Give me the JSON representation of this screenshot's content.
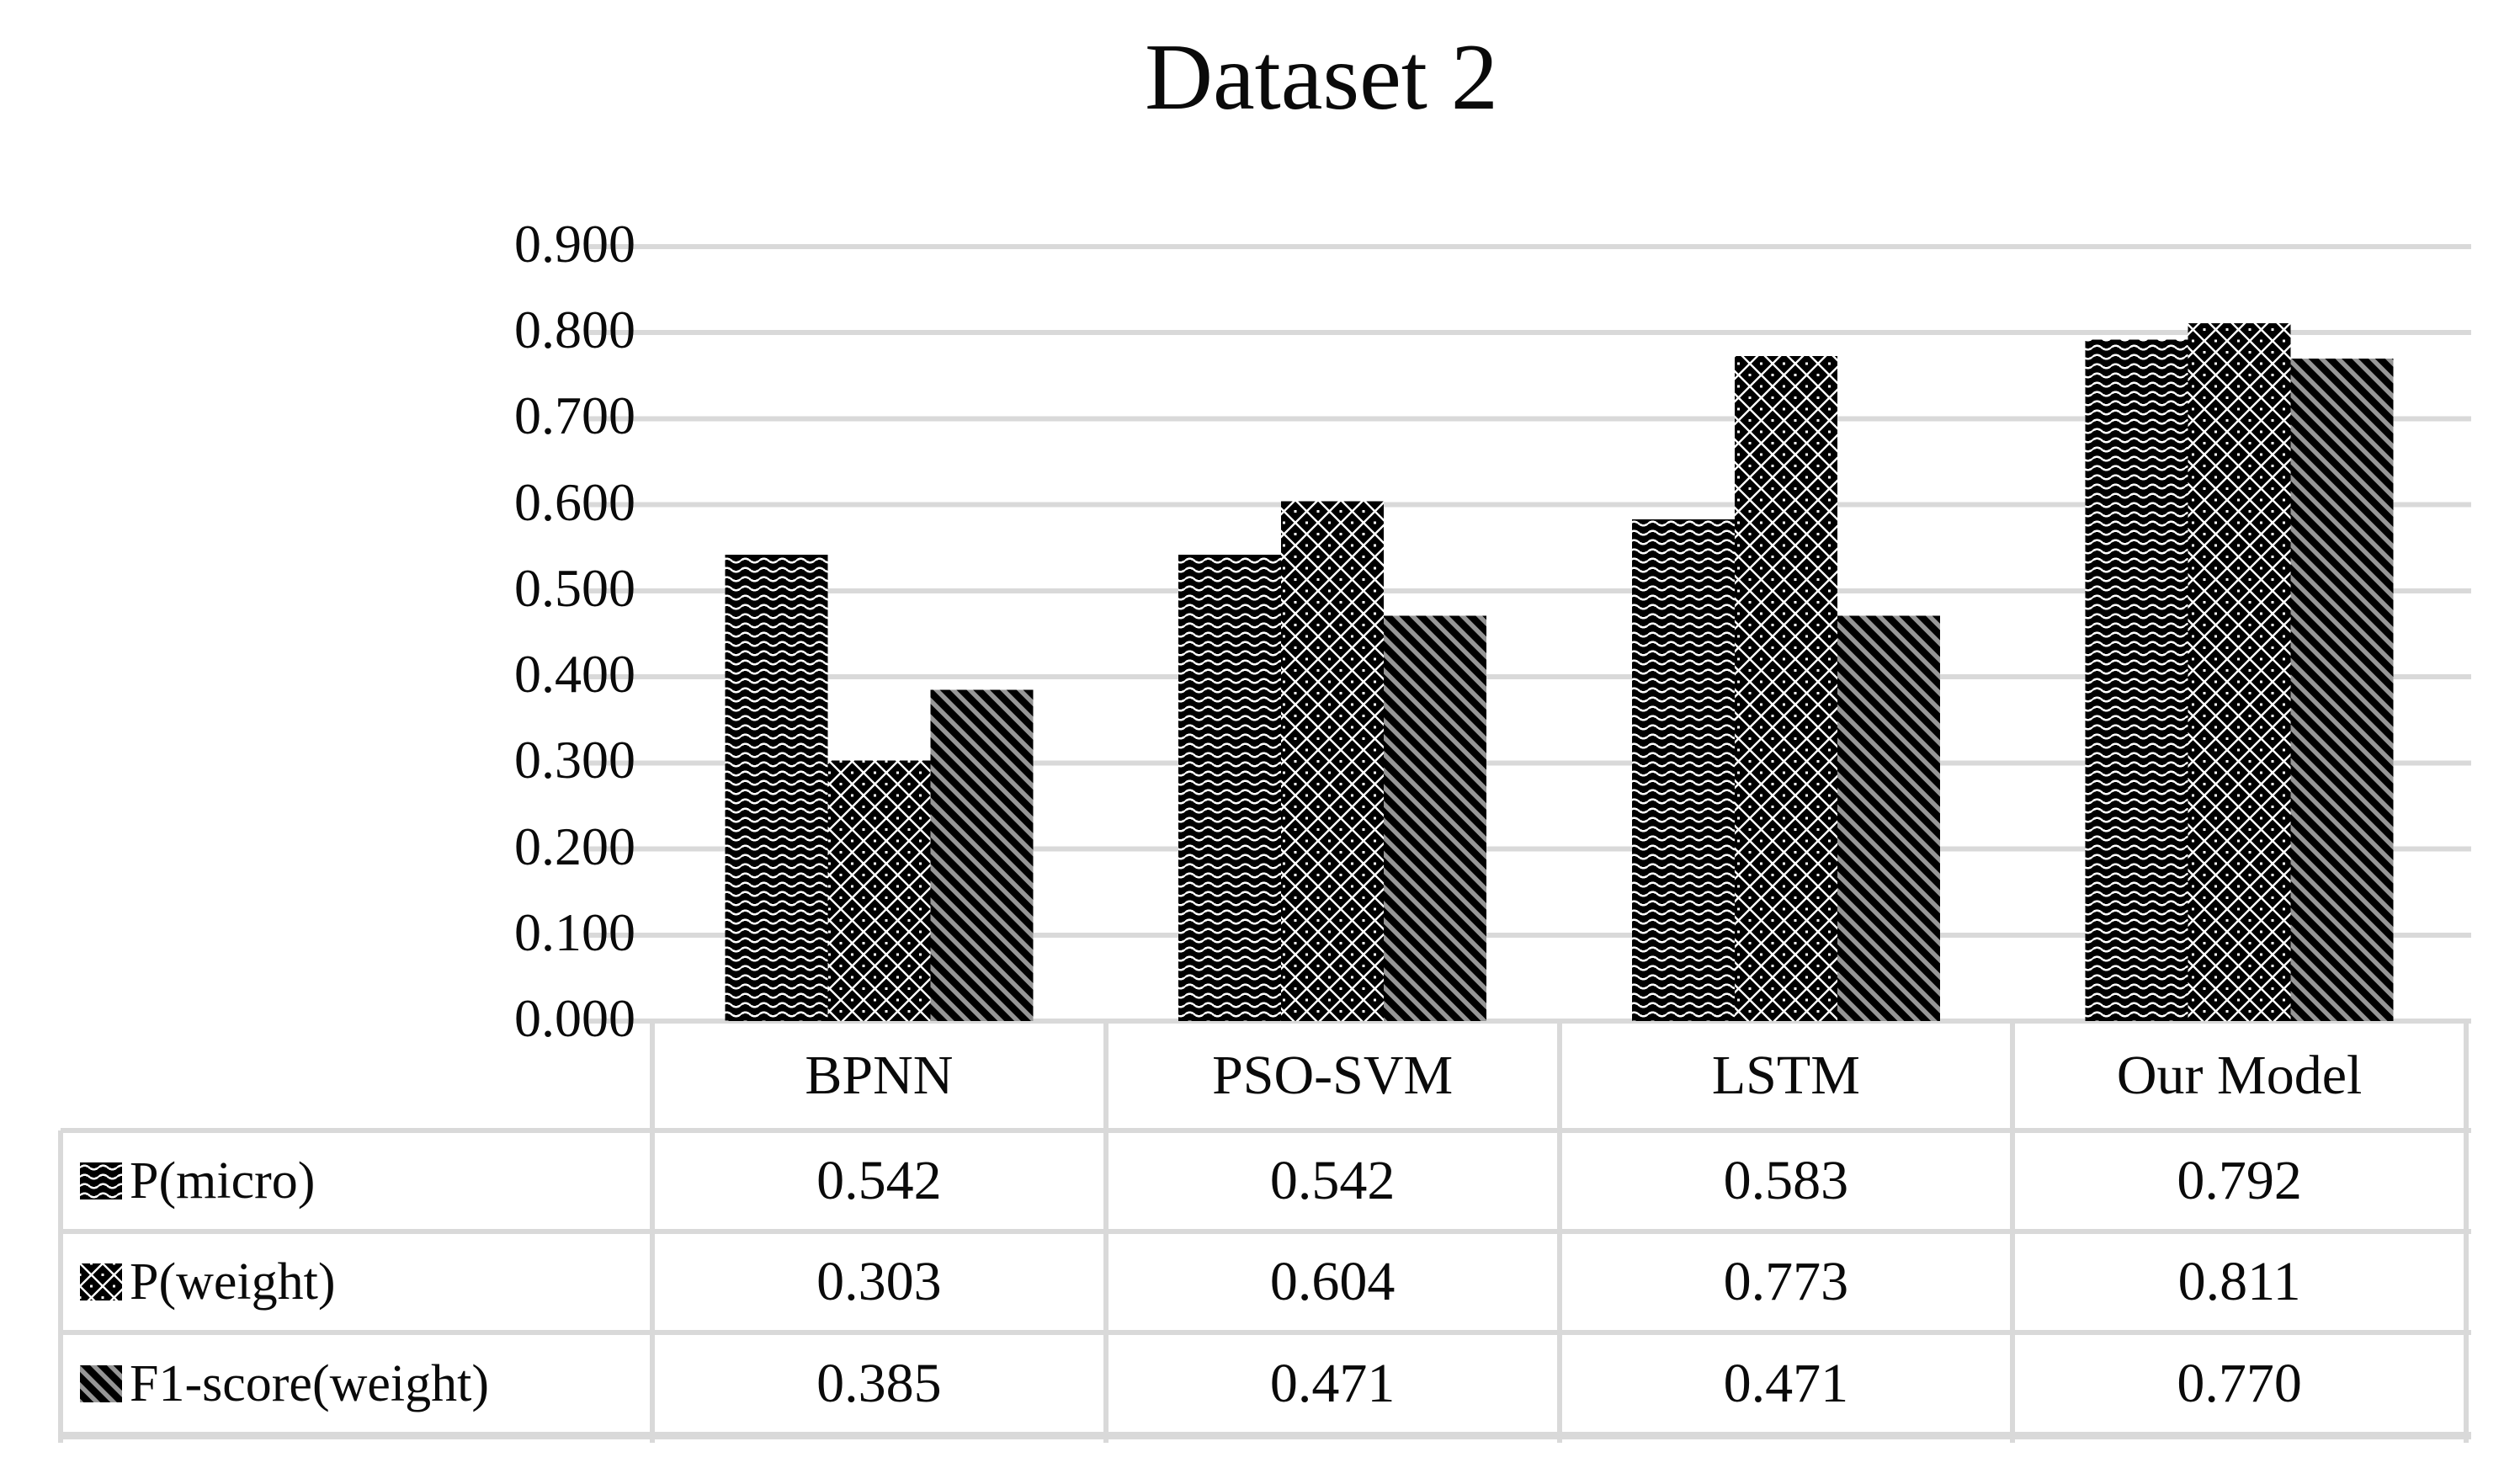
{
  "title": "Dataset 2",
  "chart_data": {
    "type": "bar",
    "title": "Dataset 2",
    "categories": [
      "BPNN",
      "PSO-SVM",
      "LSTM",
      "Our Model"
    ],
    "series": [
      {
        "name": "P(micro)",
        "pattern": "wave",
        "values": [
          0.542,
          0.542,
          0.583,
          0.792
        ],
        "display": [
          "0.542",
          "0.542",
          "0.583",
          "0.792"
        ]
      },
      {
        "name": "P(weight)",
        "pattern": "diagonal-crosshatch",
        "values": [
          0.303,
          0.604,
          0.773,
          0.811
        ],
        "display": [
          "0.303",
          "0.604",
          "0.773",
          "0.811"
        ]
      },
      {
        "name": "F1-score(weight)",
        "pattern": "diagonal-stripe",
        "values": [
          0.385,
          0.471,
          0.471,
          0.77
        ],
        "display": [
          "0.385",
          "0.471",
          "0.471",
          "0.770"
        ]
      }
    ],
    "ylim": [
      0,
      0.9
    ],
    "ytick_step": 0.1,
    "ytick_labels": [
      "0.000",
      "0.100",
      "0.200",
      "0.300",
      "0.400",
      "0.500",
      "0.600",
      "0.700",
      "0.800",
      "0.900"
    ],
    "grid": "horizontal",
    "legend_position": "data-table-rows-left",
    "colors": {
      "bar_fill": "#000000",
      "pattern_line": "#ffffff",
      "diag_stripe": "#969696",
      "gridline": "#d9d9d9",
      "table_border": "#d9d9d9",
      "text": "#0a0a0a",
      "background": "#ffffff"
    }
  }
}
